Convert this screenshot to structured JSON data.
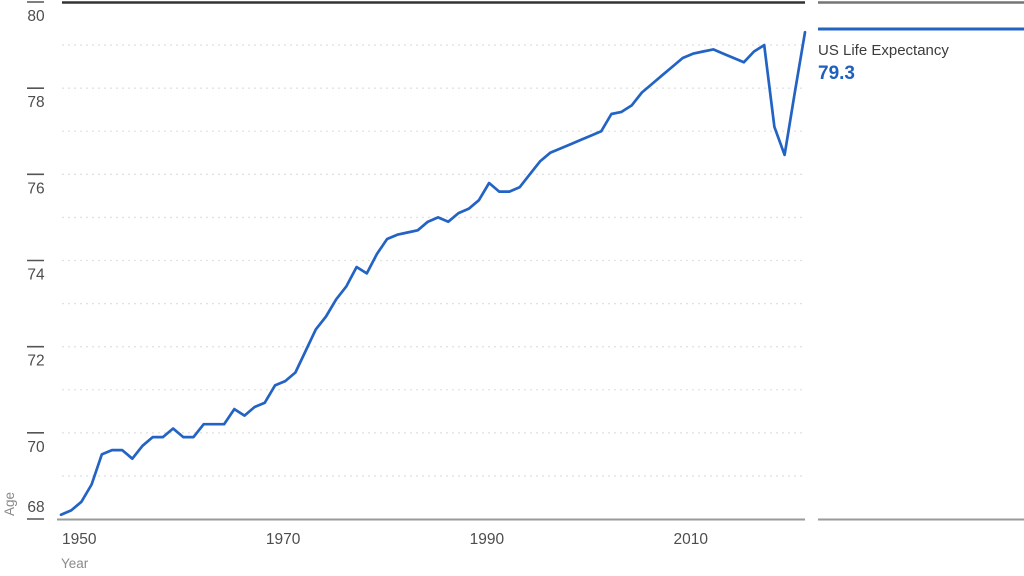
{
  "side_panel": {
    "series_label": "US Life Expectancy",
    "current_value": "79.3",
    "accent_color": "#1f5fbe"
  },
  "chart_data": {
    "type": "line",
    "title": "",
    "xlabel": "Year",
    "ylabel": "Age",
    "legend_position": "right-panel",
    "grid": "horizontal dashed gridlines at every integer age 69-79",
    "xlim": [
      1950,
      2023
    ],
    "ylim": [
      68,
      80
    ],
    "x_tick_labels": [
      "1950",
      "1970",
      "1990",
      "2010"
    ],
    "x_tick_years": [
      1950,
      1970,
      1990,
      2010
    ],
    "y_tick_labels": [
      "68",
      "70",
      "72",
      "74",
      "76",
      "78",
      "80"
    ],
    "y_tick_values": [
      68,
      70,
      72,
      74,
      76,
      78,
      80
    ],
    "line_color": "#2263c4",
    "series": [
      {
        "name": "US Life Expectancy",
        "x": [
          1950,
          1951,
          1952,
          1953,
          1954,
          1955,
          1956,
          1957,
          1958,
          1959,
          1960,
          1961,
          1962,
          1963,
          1964,
          1965,
          1966,
          1967,
          1968,
          1969,
          1970,
          1971,
          1972,
          1973,
          1974,
          1975,
          1976,
          1977,
          1978,
          1979,
          1980,
          1981,
          1982,
          1983,
          1984,
          1985,
          1986,
          1987,
          1988,
          1989,
          1990,
          1991,
          1992,
          1993,
          1994,
          1995,
          1996,
          1997,
          1998,
          1999,
          2000,
          2001,
          2002,
          2003,
          2004,
          2005,
          2006,
          2007,
          2008,
          2009,
          2010,
          2011,
          2012,
          2013,
          2014,
          2015,
          2016,
          2017,
          2018,
          2019,
          2020,
          2021,
          2022,
          2023
        ],
        "values": [
          68.1,
          68.2,
          68.4,
          68.8,
          69.5,
          69.6,
          69.6,
          69.4,
          69.7,
          69.9,
          69.9,
          70.1,
          69.9,
          69.9,
          70.2,
          70.2,
          70.2,
          70.55,
          70.4,
          70.6,
          70.7,
          71.1,
          71.2,
          71.4,
          71.9,
          72.4,
          72.7,
          73.1,
          73.4,
          73.85,
          73.7,
          74.15,
          74.5,
          74.6,
          74.65,
          74.7,
          74.9,
          75.0,
          74.9,
          75.1,
          75.2,
          75.4,
          75.8,
          75.6,
          75.6,
          75.7,
          76.0,
          76.3,
          76.5,
          76.6,
          76.7,
          76.8,
          76.9,
          77.0,
          77.4,
          77.45,
          77.6,
          77.9,
          78.1,
          78.3,
          78.5,
          78.7,
          78.8,
          78.85,
          78.9,
          78.8,
          78.7,
          78.6,
          78.85,
          79.0,
          77.1,
          76.45,
          77.9,
          79.3
        ]
      }
    ]
  }
}
